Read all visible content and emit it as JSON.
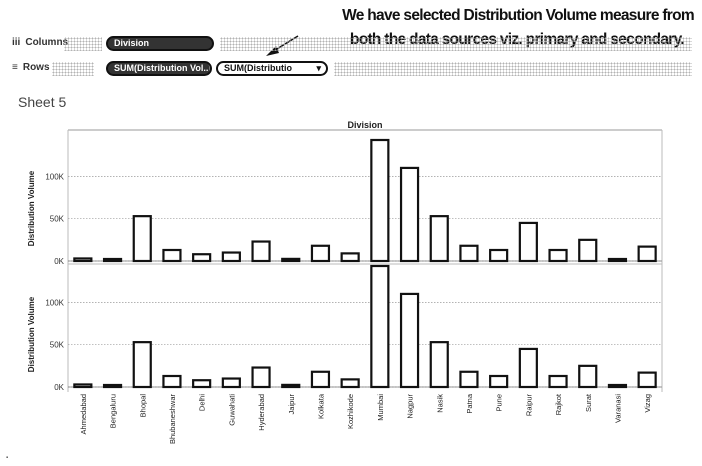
{
  "annotation": {
    "line1": "We have selected Distribution Volume measure from",
    "line2": "both the data sources viz. primary and secondary."
  },
  "shelves": {
    "columns": {
      "icon": "columns-icon",
      "glyph": "iii",
      "label": "Columns",
      "pills": [
        "Division"
      ]
    },
    "rows": {
      "icon": "rows-icon",
      "glyph": "≡",
      "label": "Rows",
      "pills": [
        "SUM(Distribution Vol..)",
        "SUM(Distributio"
      ]
    }
  },
  "sheet": {
    "title": "Sheet 5"
  },
  "chart_data": {
    "type": "bar",
    "title": "Division",
    "categories": [
      "Ahmedabad",
      "Bengaluru",
      "Bhopal",
      "Bhubaneshwar",
      "Delhi",
      "Guwahati",
      "Hyderabad",
      "Jaipur",
      "Kolkata",
      "Kozhikode",
      "Mumbai",
      "Nagpur",
      "Nasik",
      "Patna",
      "Pune",
      "Raipur",
      "Rajkot",
      "Surat",
      "Varanasi",
      "Vizag"
    ],
    "series": [
      {
        "name": "Distribution Volume (primary)",
        "values": [
          3000,
          800,
          53000,
          13000,
          8000,
          10000,
          23000,
          2500,
          18000,
          9000,
          143000,
          110000,
          53000,
          18000,
          13000,
          45000,
          13000,
          25000,
          800,
          17000
        ]
      },
      {
        "name": "Distribution Volume (secondary)",
        "values": [
          3000,
          800,
          53000,
          13000,
          8000,
          10000,
          23000,
          2500,
          18000,
          9000,
          143000,
          110000,
          53000,
          18000,
          13000,
          45000,
          13000,
          25000,
          800,
          17000
        ]
      }
    ],
    "ylabel": "Distribution Volume",
    "yticks": [
      "0K",
      "50K",
      "100K"
    ],
    "ytick_values": [
      0,
      50000,
      100000
    ],
    "ylim": [
      0,
      143000
    ],
    "grid": true
  },
  "footer": {
    "dot": "▪"
  }
}
